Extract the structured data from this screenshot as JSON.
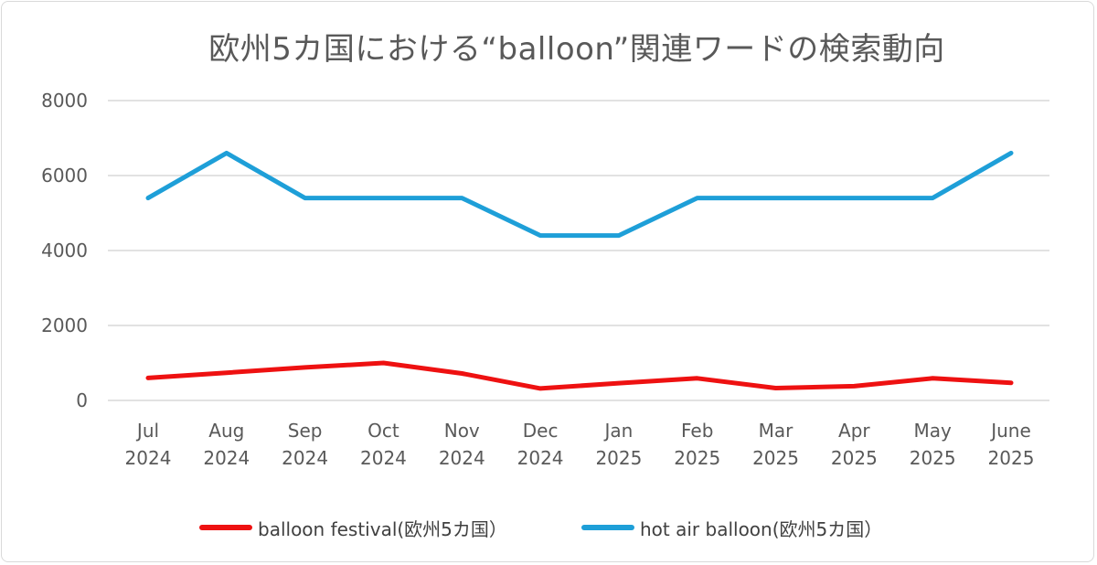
{
  "chart_data": {
    "type": "line",
    "title": "欧州5カ国における“balloon”関連ワードの検索動向",
    "categories": [
      [
        "Jul",
        "2024"
      ],
      [
        "Aug",
        "2024"
      ],
      [
        "Sep",
        "2024"
      ],
      [
        "Oct",
        "2024"
      ],
      [
        "Nov",
        "2024"
      ],
      [
        "Dec",
        "2024"
      ],
      [
        "Jan",
        "2025"
      ],
      [
        "Feb",
        "2025"
      ],
      [
        "Mar",
        "2025"
      ],
      [
        "Apr",
        "2025"
      ],
      [
        "May",
        "2025"
      ],
      [
        "June",
        "2025"
      ]
    ],
    "ylim": [
      0,
      8000
    ],
    "yticks": [
      0,
      2000,
      4000,
      6000,
      8000
    ],
    "grid": true,
    "legend_position": "bottom",
    "series": [
      {
        "name": "balloon festival(欧州5カ国）",
        "color": "#ee1111",
        "values": [
          600,
          740,
          880,
          1000,
          720,
          320,
          460,
          590,
          330,
          380,
          590,
          470
        ]
      },
      {
        "name": "hot air balloon(欧州5カ国）",
        "color": "#1e9fd8",
        "values": [
          5400,
          6600,
          5400,
          5400,
          5400,
          4400,
          4400,
          5400,
          5400,
          5400,
          5400,
          6600
        ]
      }
    ]
  }
}
